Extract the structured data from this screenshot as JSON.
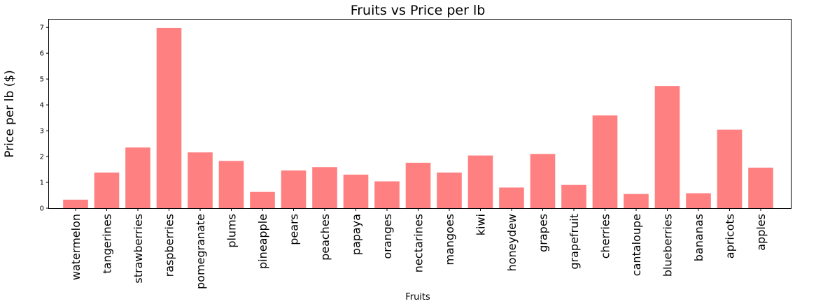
{
  "chart_data": {
    "type": "bar",
    "title": "Fruits vs Price per lb",
    "xlabel": "Fruits",
    "ylabel": "Price per lb ($)",
    "categories": [
      "watermelon",
      "tangerines",
      "strawberries",
      "raspberries",
      "pomegranate",
      "plums",
      "pineapple",
      "pears",
      "peaches",
      "papaya",
      "oranges",
      "nectarines",
      "mangoes",
      "kiwi",
      "honeydew",
      "grapes",
      "grapefruit",
      "cherries",
      "cantaloupe",
      "blueberries",
      "bananas",
      "apricots",
      "apples"
    ],
    "values": [
      0.33,
      1.38,
      2.35,
      6.98,
      2.16,
      1.83,
      0.63,
      1.46,
      1.59,
      1.3,
      1.04,
      1.76,
      1.38,
      2.04,
      0.8,
      2.1,
      0.9,
      3.59,
      0.55,
      4.73,
      0.58,
      3.04,
      1.57
    ],
    "yticks": [
      "0",
      "1",
      "2",
      "3",
      "4",
      "5",
      "6",
      "7"
    ],
    "ylim": [
      0,
      7.33
    ],
    "bar_color": "#ff8080",
    "grid": false
  }
}
